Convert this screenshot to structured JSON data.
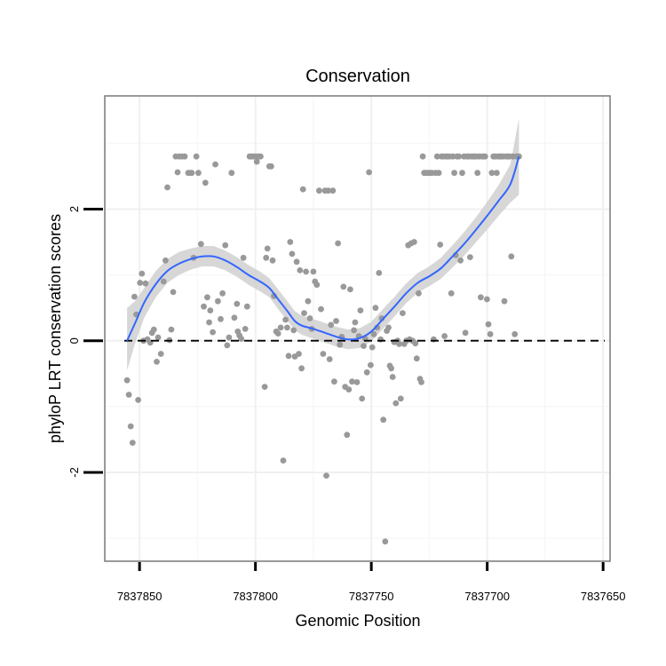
{
  "chart_data": {
    "type": "scatter",
    "title": "Conservation",
    "xlabel": "Genomic Position",
    "ylabel": "phyloP LRT conservation scores",
    "x_reversed": true,
    "xlim": [
      7837865,
      7837647
    ],
    "ylim": [
      -3.35,
      3.72
    ],
    "x_ticks": [
      7837850,
      7837800,
      7837750,
      7837700,
      7837650
    ],
    "x_tick_labels": [
      "7837850",
      "7837800",
      "7837750",
      "7837700",
      "7837650"
    ],
    "y_ticks": [
      -2,
      0,
      2
    ],
    "y_tick_labels": [
      "-2",
      "0",
      "2"
    ],
    "grid": true,
    "reference_line": {
      "y": 0,
      "style": "dashed"
    },
    "point_color": "#999999",
    "smooth_color": "#3366FF",
    "band_color": "#D0D0D0",
    "frame_color": "#808080",
    "series": [
      {
        "name": "scores",
        "points": [
          [
            7837855.4,
            -0.6
          ],
          [
            7837854.6,
            -0.82
          ],
          [
            7837853.8,
            -1.3
          ],
          [
            7837853,
            -1.55
          ],
          [
            7837852.2,
            0.67
          ],
          [
            7837851.4,
            0.4
          ],
          [
            7837850.6,
            -0.9
          ],
          [
            7837849.8,
            0.88
          ],
          [
            7837849,
            1.02
          ],
          [
            7837848.3,
            0.0
          ],
          [
            7837847.4,
            0.87
          ],
          [
            7837846.6,
            0.02
          ],
          [
            7837845.4,
            -0.03
          ],
          [
            7837844.6,
            0.12
          ],
          [
            7837843.8,
            0.17
          ],
          [
            7837842.6,
            -0.32
          ],
          [
            7837842,
            0.05
          ],
          [
            7837840.8,
            -0.2
          ],
          [
            7837839.6,
            0.9
          ],
          [
            7837838.8,
            1.22
          ],
          [
            7837838,
            2.33
          ],
          [
            7837837.1,
            0.01
          ],
          [
            7837836.3,
            0.17
          ],
          [
            7837835.5,
            0.74
          ],
          [
            7837834.4,
            2.8
          ],
          [
            7837833.6,
            2.56
          ],
          [
            7837832.9,
            2.8
          ],
          [
            7837831.7,
            2.8
          ],
          [
            7837830.5,
            2.8
          ],
          [
            7837829,
            2.55
          ],
          [
            7837828.2,
            2.55
          ],
          [
            7837827.5,
            2.55
          ],
          [
            7837826.7,
            1.26
          ],
          [
            7837825.5,
            2.8
          ],
          [
            7837824.6,
            2.55
          ],
          [
            7837823.5,
            1.47
          ],
          [
            7837822.3,
            0.52
          ],
          [
            7837821.6,
            2.4
          ],
          [
            7837820.8,
            0.66
          ],
          [
            7837820,
            0.28
          ],
          [
            7837819.5,
            0.46
          ],
          [
            7837818.4,
            0.13
          ],
          [
            7837817.3,
            2.68
          ],
          [
            7837816.2,
            0.6
          ],
          [
            7837815,
            0.33
          ],
          [
            7837814.2,
            0.72
          ],
          [
            7837813,
            1.45
          ],
          [
            7837812.2,
            -0.07
          ],
          [
            7837811.4,
            0.05
          ],
          [
            7837810.3,
            2.55
          ],
          [
            7837809.1,
            0.35
          ],
          [
            7837808,
            0.56
          ],
          [
            7837807.6,
            0.14
          ],
          [
            7837806.9,
            0.08
          ],
          [
            7837806.1,
            0.03
          ],
          [
            7837805.2,
            1.26
          ],
          [
            7837804.4,
            0.18
          ],
          [
            7837803.6,
            0.52
          ],
          [
            7837802.5,
            2.8
          ],
          [
            7837801.7,
            2.8
          ],
          [
            7837800.9,
            2.8
          ],
          [
            7837799.8,
            2.8
          ],
          [
            7837799.4,
            2.72
          ],
          [
            7837798.6,
            2.8
          ],
          [
            7837797.8,
            2.8
          ],
          [
            7837796,
            -0.7
          ],
          [
            7837795.4,
            1.26
          ],
          [
            7837794.8,
            1.4
          ],
          [
            7837794,
            2.65
          ],
          [
            7837793.2,
            2.65
          ],
          [
            7837792.6,
            1.22
          ],
          [
            7837792,
            0.68
          ],
          [
            7837791,
            0.14
          ],
          [
            7837790.2,
            0.11
          ],
          [
            7837789.1,
            0.2
          ],
          [
            7837788,
            -1.82
          ],
          [
            7837787,
            0.32
          ],
          [
            7837786.3,
            0.2
          ],
          [
            7837785.7,
            -0.23
          ],
          [
            7837785,
            1.5
          ],
          [
            7837784.2,
            1.32
          ],
          [
            7837783.5,
            0.16
          ],
          [
            7837783,
            -0.24
          ],
          [
            7837782.2,
            1.2
          ],
          [
            7837781.3,
            -0.2
          ],
          [
            7837780.8,
            1.07
          ],
          [
            7837780.1,
            -0.42
          ],
          [
            7837779.5,
            2.3
          ],
          [
            7837779,
            0.42
          ],
          [
            7837778.2,
            1.05
          ],
          [
            7837777.3,
            0.6
          ],
          [
            7837776.5,
            0.34
          ],
          [
            7837775.7,
            0.18
          ],
          [
            7837775,
            1.05
          ],
          [
            7837774.3,
            0.9
          ],
          [
            7837773.5,
            0.85
          ],
          [
            7837772.5,
            2.28
          ],
          [
            7837771.7,
            0.48
          ],
          [
            7837770.8,
            -0.2
          ],
          [
            7837770,
            2.28
          ],
          [
            7837769.4,
            -2.05
          ],
          [
            7837768.6,
            2.28
          ],
          [
            7837768,
            -0.28
          ],
          [
            7837767.4,
            0.24
          ],
          [
            7837766.6,
            2.28
          ],
          [
            7837766,
            -0.62
          ],
          [
            7837765.2,
            0.3
          ],
          [
            7837764.4,
            1.48
          ],
          [
            7837763.6,
            -0.06
          ],
          [
            7837762.8,
            0.06
          ],
          [
            7837762,
            0.82
          ],
          [
            7837761.3,
            -0.7
          ],
          [
            7837760.5,
            -1.43
          ],
          [
            7837759.7,
            -0.74
          ],
          [
            7837759.1,
            0.78
          ],
          [
            7837758.3,
            -0.62
          ],
          [
            7837757.5,
            0.16
          ],
          [
            7837757,
            0.28
          ],
          [
            7837756.2,
            -0.63
          ],
          [
            7837755.4,
            0.07
          ],
          [
            7837754.7,
            0.46
          ],
          [
            7837754,
            -0.88
          ],
          [
            7837753.3,
            -0.08
          ],
          [
            7837752.6,
            0.03
          ],
          [
            7837751.9,
            -0.48
          ],
          [
            7837751,
            2.56
          ],
          [
            7837750.3,
            -0.37
          ],
          [
            7837749.6,
            -0.1
          ],
          [
            7837748.9,
            0.1
          ],
          [
            7837748.2,
            0.5
          ],
          [
            7837747.5,
            0.2
          ],
          [
            7837746.7,
            1.03
          ],
          [
            7837746,
            0.02
          ],
          [
            7837745.5,
            0.34
          ],
          [
            7837744.8,
            -1.2
          ],
          [
            7837744,
            -3.05
          ],
          [
            7837743.3,
            0.15
          ],
          [
            7837742.6,
            0.2
          ],
          [
            7837742,
            -0.38
          ],
          [
            7837741.4,
            -0.42
          ],
          [
            7837740.8,
            -0.55
          ],
          [
            7837740.1,
            -0.02
          ],
          [
            7837739.4,
            -0.95
          ],
          [
            7837738.7,
            0.0
          ],
          [
            7837738,
            -0.05
          ],
          [
            7837737.3,
            -0.88
          ],
          [
            7837736.5,
            0.42
          ],
          [
            7837735.8,
            -0.05
          ],
          [
            7837734.9,
            0.0
          ],
          [
            7837734.1,
            1.45
          ],
          [
            7837733.5,
            0.02
          ],
          [
            7837732.8,
            1.48
          ],
          [
            7837732.2,
            0.0
          ],
          [
            7837731.5,
            1.5
          ],
          [
            7837731,
            -0.04
          ],
          [
            7837730.4,
            -0.27
          ],
          [
            7837729.6,
            0.72
          ],
          [
            7837729,
            -0.58
          ],
          [
            7837728.4,
            -0.63
          ],
          [
            7837727.8,
            2.8
          ],
          [
            7837727.2,
            2.55
          ],
          [
            7837726.6,
            2.55
          ],
          [
            7837725.8,
            2.55
          ],
          [
            7837725.2,
            2.55
          ],
          [
            7837724.5,
            2.55
          ],
          [
            7837723.9,
            2.55
          ],
          [
            7837723.1,
            0.02
          ],
          [
            7837722.3,
            2.55
          ],
          [
            7837721.6,
            2.8
          ],
          [
            7837720.9,
            2.55
          ],
          [
            7837720.3,
            1.46
          ],
          [
            7837719.7,
            2.8
          ],
          [
            7837719,
            2.8
          ],
          [
            7837718.4,
            0.07
          ],
          [
            7837717.8,
            2.8
          ],
          [
            7837717.1,
            2.8
          ],
          [
            7837716.3,
            2.8
          ],
          [
            7837715.5,
            0.72
          ],
          [
            7837714.8,
            2.8
          ],
          [
            7837714.2,
            2.55
          ],
          [
            7837713.6,
            1.3
          ],
          [
            7837713,
            2.8
          ],
          [
            7837712.2,
            2.8
          ],
          [
            7837711.5,
            1.22
          ],
          [
            7837710.8,
            2.55
          ],
          [
            7837710,
            2.8
          ],
          [
            7837709.4,
            0.12
          ],
          [
            7837708.7,
            2.8
          ],
          [
            7837708,
            2.8
          ],
          [
            7837707.4,
            1.27
          ],
          [
            7837706.7,
            2.8
          ],
          [
            7837706,
            2.8
          ],
          [
            7837705.5,
            2.8
          ],
          [
            7837704.8,
            2.8
          ],
          [
            7837704.2,
            2.55
          ],
          [
            7837703.5,
            2.8
          ],
          [
            7837702.8,
            0.66
          ],
          [
            7837702.2,
            2.8
          ],
          [
            7837701.5,
            2.8
          ],
          [
            7837700.9,
            2.8
          ],
          [
            7837700.1,
            0.63
          ],
          [
            7837699.5,
            0.25
          ],
          [
            7837698.7,
            0.1
          ],
          [
            7837698,
            2.55
          ],
          [
            7837697.3,
            2.8
          ],
          [
            7837696.5,
            2.8
          ],
          [
            7837695.9,
            2.55
          ],
          [
            7837695.3,
            2.8
          ],
          [
            7837694.6,
            2.8
          ],
          [
            7837694,
            2.8
          ],
          [
            7837693.3,
            2.8
          ],
          [
            7837692.6,
            0.6
          ],
          [
            7837691.9,
            2.8
          ],
          [
            7837691.1,
            2.8
          ],
          [
            7837690.4,
            2.8
          ],
          [
            7837689.6,
            1.28
          ],
          [
            7837689,
            2.8
          ],
          [
            7837688.1,
            0.1
          ],
          [
            7837687.5,
            2.8
          ],
          [
            7837686.8,
            2.8
          ],
          [
            7837686.3,
            2.8
          ]
        ]
      }
    ],
    "smooth_fit": [
      [
        7837855.4,
        0.0
      ],
      [
        7837852,
        0.26
      ],
      [
        7837848,
        0.58
      ],
      [
        7837843,
        0.86
      ],
      [
        7837838,
        1.06
      ],
      [
        7837833,
        1.17
      ],
      [
        7837828,
        1.24
      ],
      [
        7837823,
        1.28
      ],
      [
        7837818,
        1.28
      ],
      [
        7837813,
        1.22
      ],
      [
        7837808,
        1.12
      ],
      [
        7837803,
        1.0
      ],
      [
        7837798,
        0.9
      ],
      [
        7837794,
        0.8
      ],
      [
        7837790,
        0.62
      ],
      [
        7837786,
        0.44
      ],
      [
        7837783,
        0.3
      ],
      [
        7837780,
        0.23
      ],
      [
        7837775,
        0.18
      ],
      [
        7837770,
        0.12
      ],
      [
        7837765,
        0.06
      ],
      [
        7837760,
        0.02
      ],
      [
        7837755,
        0.04
      ],
      [
        7837750,
        0.14
      ],
      [
        7837745,
        0.33
      ],
      [
        7837740,
        0.52
      ],
      [
        7837735,
        0.72
      ],
      [
        7837730,
        0.88
      ],
      [
        7837725,
        0.98
      ],
      [
        7837720,
        1.1
      ],
      [
        7837715,
        1.28
      ],
      [
        7837710,
        1.47
      ],
      [
        7837705,
        1.68
      ],
      [
        7837700,
        1.9
      ],
      [
        7837695,
        2.13
      ],
      [
        7837690,
        2.38
      ],
      [
        7837686.3,
        2.8
      ]
    ],
    "confidence_band": [
      [
        7837855.4,
        -0.45,
        0.5
      ],
      [
        7837852,
        -0.05,
        0.6
      ],
      [
        7837848,
        0.35,
        0.8
      ],
      [
        7837843,
        0.66,
        1.06
      ],
      [
        7837838,
        0.88,
        1.24
      ],
      [
        7837833,
        1.0,
        1.35
      ],
      [
        7837828,
        1.08,
        1.4
      ],
      [
        7837823,
        1.13,
        1.44
      ],
      [
        7837818,
        1.13,
        1.44
      ],
      [
        7837813,
        1.07,
        1.37
      ],
      [
        7837808,
        0.97,
        1.27
      ],
      [
        7837803,
        0.85,
        1.15
      ],
      [
        7837798,
        0.75,
        1.05
      ],
      [
        7837794,
        0.66,
        0.95
      ],
      [
        7837790,
        0.47,
        0.77
      ],
      [
        7837786,
        0.29,
        0.59
      ],
      [
        7837783,
        0.16,
        0.45
      ],
      [
        7837780,
        0.09,
        0.38
      ],
      [
        7837775,
        0.03,
        0.33
      ],
      [
        7837770,
        -0.03,
        0.27
      ],
      [
        7837765,
        -0.09,
        0.21
      ],
      [
        7837760,
        -0.13,
        0.17
      ],
      [
        7837755,
        -0.11,
        0.19
      ],
      [
        7837750,
        -0.01,
        0.29
      ],
      [
        7837745,
        0.18,
        0.48
      ],
      [
        7837740,
        0.37,
        0.67
      ],
      [
        7837735,
        0.57,
        0.87
      ],
      [
        7837730,
        0.73,
        1.03
      ],
      [
        7837725,
        0.83,
        1.13
      ],
      [
        7837720,
        0.94,
        1.26
      ],
      [
        7837715,
        1.11,
        1.45
      ],
      [
        7837710,
        1.29,
        1.65
      ],
      [
        7837705,
        1.49,
        1.87
      ],
      [
        7837700,
        1.69,
        2.11
      ],
      [
        7837695,
        1.9,
        2.37
      ],
      [
        7837690,
        2.1,
        2.68
      ],
      [
        7837686.3,
        2.22,
        3.38
      ]
    ]
  }
}
